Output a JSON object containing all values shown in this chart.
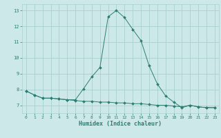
{
  "line1_x": [
    0,
    1,
    2,
    3,
    4,
    5,
    6,
    7,
    8,
    9,
    10,
    11,
    12,
    13,
    14,
    15,
    16,
    17,
    18,
    19,
    20,
    21,
    22,
    23
  ],
  "line1_y": [
    7.9,
    7.65,
    7.45,
    7.45,
    7.4,
    7.35,
    7.35,
    8.05,
    8.8,
    9.4,
    12.6,
    13.0,
    12.55,
    11.8,
    11.1,
    9.5,
    8.35,
    7.6,
    7.2,
    6.85,
    7.0,
    6.9,
    6.85,
    6.85
  ],
  "line2_x": [
    0,
    1,
    2,
    3,
    4,
    5,
    6,
    7,
    8,
    9,
    10,
    11,
    12,
    13,
    14,
    15,
    16,
    17,
    18,
    19,
    20,
    21,
    22,
    23
  ],
  "line2_y": [
    7.9,
    7.65,
    7.45,
    7.45,
    7.4,
    7.35,
    7.3,
    7.25,
    7.25,
    7.2,
    7.2,
    7.15,
    7.15,
    7.1,
    7.1,
    7.05,
    7.0,
    7.0,
    6.95,
    6.9,
    7.0,
    6.9,
    6.85,
    6.85
  ],
  "line_color": "#2d7d72",
  "bg_color": "#cde8e8",
  "grid_color": "#a8d0d0",
  "xlabel": "Humidex (Indice chaleur)",
  "ylim": [
    6.5,
    13.4
  ],
  "xlim": [
    -0.5,
    23.5
  ],
  "yticks": [
    7,
    8,
    9,
    10,
    11,
    12,
    13
  ],
  "xticks": [
    0,
    1,
    2,
    3,
    4,
    5,
    6,
    7,
    8,
    9,
    10,
    11,
    12,
    13,
    14,
    15,
    16,
    17,
    18,
    19,
    20,
    21,
    22,
    23
  ]
}
